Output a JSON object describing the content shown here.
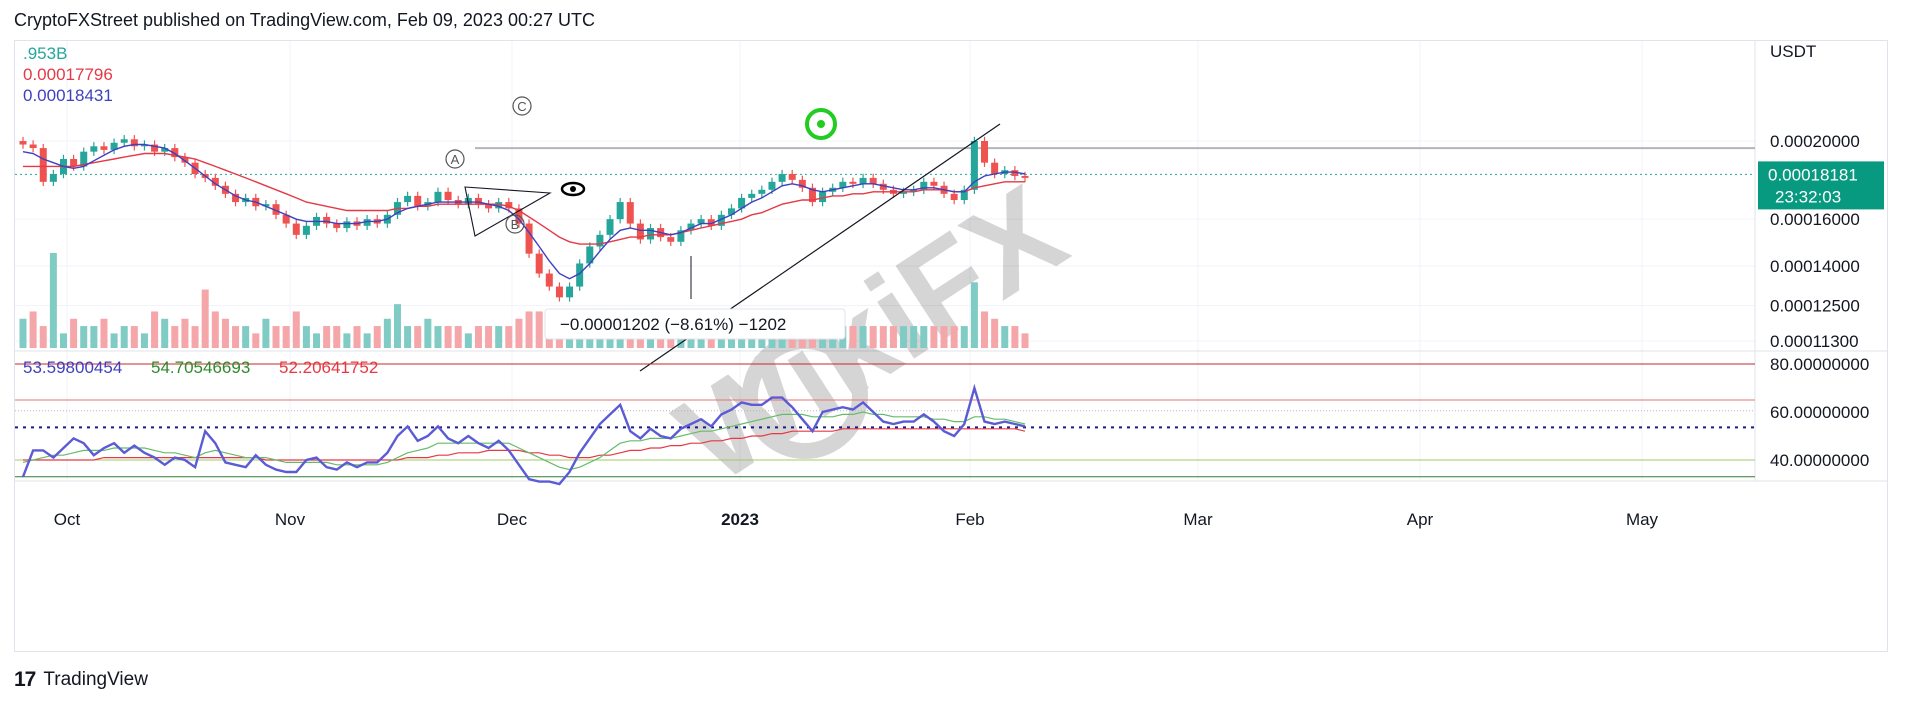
{
  "header": {
    "text": "CryptoFXStreet published on TradingView.com, Feb 09, 2023 00:27 UTC"
  },
  "chart_data": [
    {
      "type": "candlestick",
      "title": "",
      "currency_label": "USDT",
      "y_scale": "log",
      "y_tick_labels": [
        "0.00020000",
        "0.00016000",
        "0.00014000",
        "0.00012500",
        "0.00011300"
      ],
      "y_tick_values": [
        0.0002,
        0.00016,
        0.00014,
        0.000125,
        0.000113
      ],
      "x_tick_labels": [
        "Oct",
        "Nov",
        "Dec",
        "2023",
        "Feb",
        "Mar",
        "Apr",
        "May"
      ],
      "legend_values": [
        {
          "text": ".953B",
          "color": "#26a69a"
        },
        {
          "text": "0.00017796",
          "color": "#e53945"
        },
        {
          "text": "0.00018431",
          "color": "#3f3fbf"
        }
      ],
      "last_price": "0.00018181",
      "countdown": "23:32:03",
      "resistance_level": 0.000196,
      "measure_label": "−0.00001202 (−8.61%) −1202",
      "wave_labels": [
        "C",
        "A",
        "B"
      ],
      "close_series": [
        0.000198,
        0.000196,
        0.000178,
        0.000182,
        0.00019,
        0.000186,
        0.000194,
        0.000197,
        0.000195,
        0.000199,
        0.000201,
        0.000197,
        0.000198,
        0.000194,
        0.000196,
        0.000191,
        0.000188,
        0.000182,
        0.00018,
        0.000176,
        0.000172,
        0.000168,
        0.00017,
        0.000166,
        0.000167,
        0.000162,
        0.000158,
        0.000153,
        0.000157,
        0.000161,
        0.000158,
        0.000156,
        0.000159,
        0.000157,
        0.00016,
        0.000158,
        0.000162,
        0.000168,
        0.000171,
        0.000166,
        0.000168,
        0.000173,
        0.000169,
        0.000167,
        0.00017,
        0.000167,
        0.000165,
        0.000168,
        0.000165,
        0.000158,
        0.000145,
        0.000137,
        0.000132,
        0.000128,
        0.000132,
        0.000141,
        0.000148,
        0.000153,
        0.00016,
        0.000168,
        0.000158,
        0.000151,
        0.000156,
        0.000152,
        0.00015,
        0.000155,
        0.000158,
        0.00016,
        0.000157,
        0.000162,
        0.000165,
        0.00017,
        0.000172,
        0.000174,
        0.000178,
        0.000182,
        0.000179,
        0.000175,
        0.000168,
        0.000173,
        0.000175,
        0.000178,
        0.000177,
        0.00018,
        0.000177,
        0.000174,
        0.000172,
        0.000173,
        0.000174,
        0.000178,
        0.000176,
        0.000172,
        0.000169,
        0.000174,
        0.0002,
        0.000188,
        0.000182,
        0.000184,
        0.000181,
        0.00018
      ],
      "ma_fast": [
        0.000194,
        0.000193,
        0.00019,
        0.000188,
        0.000186,
        0.000185,
        0.000186,
        0.000189,
        0.000192,
        0.000195,
        0.000197,
        0.000198,
        0.000198,
        0.000197,
        0.000196,
        0.000193,
        0.000189,
        0.000185,
        0.000181,
        0.000177,
        0.000174,
        0.000171,
        0.000169,
        0.000168,
        0.000166,
        0.000164,
        0.000162,
        0.00016,
        0.000159,
        0.000159,
        0.000159,
        0.000158,
        0.000158,
        0.000158,
        0.000159,
        0.000159,
        0.00016,
        0.000163,
        0.000165,
        0.000166,
        0.000167,
        0.000168,
        0.000168,
        0.000168,
        0.000168,
        0.000168,
        0.000167,
        0.000166,
        0.000164,
        0.00016,
        0.000154,
        0.000148,
        0.000142,
        0.000137,
        0.000135,
        0.000137,
        0.000141,
        0.000146,
        0.000151,
        0.000155,
        0.000156,
        0.000155,
        0.000155,
        0.000154,
        0.000153,
        0.000154,
        0.000156,
        0.000158,
        0.000158,
        0.00016,
        0.000162,
        0.000165,
        0.000168,
        0.00017,
        0.000173,
        0.000176,
        0.000177,
        0.000176,
        0.000174,
        0.000173,
        0.000174,
        0.000175,
        0.000176,
        0.000177,
        0.000177,
        0.000176,
        0.000175,
        0.000174,
        0.000174,
        0.000175,
        0.000175,
        0.000174,
        0.000173,
        0.000173,
        0.000178,
        0.000181,
        0.000182,
        0.000183,
        0.000183,
        0.000182
      ],
      "ma_slow": [
        0.000186,
        0.000186,
        0.000186,
        0.000186,
        0.000186,
        0.000186,
        0.000187,
        0.000188,
        0.000189,
        0.00019,
        0.000191,
        0.000192,
        0.000193,
        0.000193,
        0.000193,
        0.000192,
        0.000191,
        0.00019,
        0.000188,
        0.000186,
        0.000184,
        0.000182,
        0.00018,
        0.000178,
        0.000176,
        0.000174,
        0.000172,
        0.00017,
        0.000168,
        0.000167,
        0.000166,
        0.000165,
        0.000164,
        0.000164,
        0.000164,
        0.000164,
        0.000164,
        0.000165,
        0.000165,
        0.000166,
        0.000166,
        0.000167,
        0.000167,
        0.000167,
        0.000167,
        0.000167,
        0.000167,
        0.000167,
        0.000166,
        0.000164,
        0.000161,
        0.000158,
        0.000155,
        0.000152,
        0.00015,
        0.000149,
        0.000149,
        0.000149,
        0.00015,
        0.000151,
        0.000152,
        0.000152,
        0.000153,
        0.000153,
        0.000153,
        0.000154,
        0.000155,
        0.000156,
        0.000157,
        0.000158,
        0.000159,
        0.00016,
        0.000162,
        0.000163,
        0.000165,
        0.000167,
        0.000168,
        0.000169,
        0.000169,
        0.00017,
        0.000171,
        0.000171,
        0.000172,
        0.000172,
        0.000173,
        0.000173,
        0.000173,
        0.000173,
        0.000173,
        0.000174,
        0.000174,
        0.000174,
        0.000173,
        0.000173,
        0.000175,
        0.000176,
        0.000177,
        0.000178,
        0.000178,
        0.000178
      ],
      "volume": [
        4,
        5,
        3,
        13,
        2,
        4,
        3,
        3,
        4,
        2,
        3,
        3,
        2,
        5,
        4,
        3,
        4,
        3,
        8,
        5,
        4,
        3,
        3,
        2,
        4,
        3,
        3,
        5,
        3,
        2,
        3,
        3,
        2,
        3,
        2,
        3,
        4,
        6,
        3,
        3,
        4,
        3,
        3,
        3,
        2,
        3,
        3,
        3,
        3,
        4,
        5,
        5,
        4,
        4,
        3,
        4,
        4,
        3,
        3,
        5,
        3,
        3,
        3,
        3,
        3,
        3,
        3,
        3,
        3,
        3,
        3,
        3,
        4,
        3,
        3,
        4,
        3,
        3,
        3,
        3,
        4,
        3,
        3,
        3,
        3,
        3,
        3,
        3,
        3,
        3,
        3,
        3,
        3,
        3,
        9,
        5,
        4,
        3,
        3,
        2
      ]
    },
    {
      "type": "line",
      "title": "",
      "legend_values": [
        {
          "text": "53.59800454",
          "color": "#3f3fbf"
        },
        {
          "text": "54.70546693",
          "color": "#2e8b2e"
        },
        {
          "text": "52.20641752",
          "color": "#e53945"
        }
      ],
      "y_tick_labels": [
        "80.00000000",
        "60.00000000",
        "40.00000000"
      ],
      "y_tick_values": [
        80,
        60,
        40
      ],
      "y_range": [
        25,
        85
      ],
      "reference_lines": [
        80,
        65,
        60.5,
        53.6,
        40,
        33
      ],
      "rsi": [
        33,
        44,
        44,
        41,
        45,
        49,
        47,
        42,
        45,
        47,
        43,
        46,
        43,
        41,
        38,
        41,
        40,
        37,
        52,
        47,
        39,
        38,
        37,
        42,
        38,
        36,
        35,
        35,
        40,
        41,
        37,
        36,
        39,
        37,
        39,
        39,
        43,
        50,
        54,
        48,
        50,
        54,
        49,
        47,
        50,
        47,
        45,
        48,
        44,
        38,
        32,
        31,
        31,
        30,
        35,
        43,
        49,
        55,
        59,
        63,
        52,
        49,
        53,
        50,
        49,
        53,
        55,
        57,
        54,
        59,
        61,
        64,
        63,
        63,
        66,
        66,
        62,
        57,
        52,
        60,
        61,
        62,
        61,
        64,
        60,
        56,
        55,
        56,
        56,
        59,
        56,
        52,
        50,
        55,
        70,
        56,
        55,
        56,
        55,
        54
      ],
      "signal": [
        39,
        40,
        41,
        42,
        42,
        43,
        44,
        44,
        44,
        45,
        45,
        45,
        45,
        44,
        43,
        43,
        42,
        41,
        43,
        44,
        43,
        42,
        41,
        41,
        41,
        40,
        39,
        39,
        39,
        39,
        39,
        38,
        38,
        38,
        38,
        38,
        39,
        41,
        43,
        44,
        45,
        47,
        47,
        47,
        47,
        47,
        47,
        47,
        47,
        45,
        43,
        41,
        39,
        37,
        36,
        37,
        39,
        41,
        44,
        47,
        48,
        48,
        49,
        49,
        49,
        50,
        51,
        52,
        52,
        53,
        54,
        55,
        56,
        57,
        58,
        59,
        59,
        59,
        58,
        58,
        58,
        59,
        59,
        60,
        59,
        59,
        58,
        58,
        58,
        58,
        57,
        57,
        56,
        56,
        58,
        58,
        57,
        57,
        56,
        55
      ],
      "slow": [
        40,
        40,
        40,
        40,
        40,
        40,
        40,
        40,
        41,
        41,
        41,
        41,
        41,
        41,
        41,
        41,
        41,
        41,
        41,
        41,
        41,
        41,
        41,
        41,
        40,
        40,
        40,
        40,
        40,
        40,
        40,
        40,
        40,
        40,
        40,
        40,
        40,
        40,
        41,
        41,
        41,
        42,
        42,
        43,
        43,
        43,
        44,
        44,
        44,
        44,
        43,
        43,
        42,
        42,
        41,
        41,
        41,
        42,
        42,
        43,
        44,
        44,
        45,
        45,
        46,
        46,
        47,
        47,
        48,
        48,
        49,
        49,
        50,
        50,
        51,
        51,
        52,
        52,
        52,
        52,
        52,
        53,
        53,
        53,
        53,
        53,
        53,
        53,
        53,
        53,
        53,
        53,
        53,
        53,
        53,
        53,
        53,
        53,
        53,
        52
      ]
    }
  ],
  "footer": {
    "logo": "17",
    "name": "TradingView"
  },
  "watermark": {
    "text": "WikiFX"
  }
}
